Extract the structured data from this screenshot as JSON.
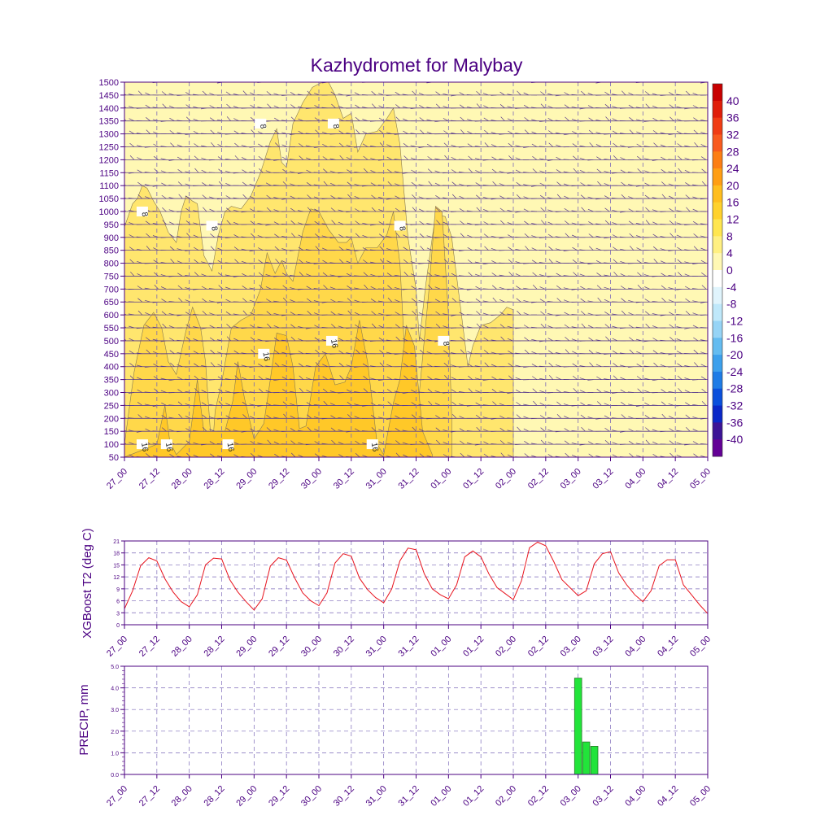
{
  "title": "Kazhydromet for Malybay",
  "colors": {
    "axis": "#4b0082",
    "grid": "#7b68b8",
    "t2_line": "#e8141e",
    "precip_bar": "#22e43a",
    "precip_edge": "#2a7a2a"
  },
  "chart_data": [
    {
      "id": "cross_section",
      "type": "heatmap",
      "title": "Kazhydromet for Malybay",
      "ylabel": "",
      "xlabel": "",
      "x_ticks": [
        "27_00",
        "27_12",
        "28_00",
        "28_12",
        "29_00",
        "29_12",
        "30_00",
        "30_12",
        "31_00",
        "31_12",
        "01_00",
        "01_12",
        "02_00",
        "02_12",
        "03_00",
        "03_12",
        "04_00",
        "04_12",
        "05_00"
      ],
      "y_ticks": [
        50,
        100,
        150,
        200,
        250,
        300,
        350,
        400,
        450,
        500,
        550,
        600,
        650,
        700,
        750,
        800,
        850,
        900,
        950,
        1000,
        1050,
        1100,
        1150,
        1200,
        1250,
        1300,
        1350,
        1400,
        1450,
        1500
      ],
      "ylim": [
        50,
        1500
      ],
      "xlim": [
        0,
        18
      ],
      "colorbar": {
        "labels": [
          "40",
          "36",
          "32",
          "28",
          "24",
          "20",
          "16",
          "12",
          "8",
          "4",
          "0",
          "-4",
          "-8",
          "-12",
          "-16",
          "-20",
          "-24",
          "-28",
          "-32",
          "-36",
          "-40"
        ],
        "colors": [
          "#c80000",
          "#e01e0a",
          "#f03c14",
          "#f85a1e",
          "#fc7e14",
          "#ff9e14",
          "#ffbe1e",
          "#ffd22d",
          "#ffe650",
          "#fff082",
          "#fff8b4",
          "#ffffff",
          "#e0f4fc",
          "#bfe8fa",
          "#96d4f6",
          "#64bcf0",
          "#3ca0ec",
          "#1e7ce6",
          "#0a50dc",
          "#0a28c8",
          "#3c1496",
          "#640096"
        ]
      },
      "contours": [
        {
          "level": 8,
          "points": [
            [
              0,
              940
            ],
            [
              0.25,
              1030
            ],
            [
              0.4,
              1050
            ],
            [
              0.55,
              1100
            ],
            [
              0.7,
              1090
            ],
            [
              0.9,
              1040
            ],
            [
              1.1,
              1000
            ],
            [
              1.35,
              920
            ],
            [
              1.6,
              880
            ],
            [
              1.75,
              1000
            ],
            [
              1.9,
              1060
            ],
            [
              2.1,
              1040
            ],
            [
              2.25,
              1030
            ],
            [
              2.45,
              830
            ],
            [
              2.7,
              770
            ],
            [
              2.9,
              910
            ],
            [
              3.1,
              1000
            ],
            [
              3.3,
              1020
            ],
            [
              3.6,
              1010
            ],
            [
              3.9,
              1060
            ],
            [
              4.2,
              1150
            ],
            [
              4.5,
              1270
            ],
            [
              4.7,
              1320
            ],
            [
              4.85,
              1190
            ],
            [
              5.0,
              1170
            ],
            [
              5.2,
              1340
            ],
            [
              5.5,
              1420
            ],
            [
              5.8,
              1480
            ],
            [
              6.1,
              1500
            ],
            [
              6.3,
              1500
            ],
            [
              6.5,
              1450
            ],
            [
              6.75,
              1360
            ],
            [
              7.0,
              1380
            ],
            [
              7.2,
              1230
            ],
            [
              7.45,
              1300
            ],
            [
              7.8,
              1310
            ],
            [
              8.1,
              1360
            ],
            [
              8.3,
              1400
            ],
            [
              8.5,
              1260
            ],
            [
              8.75,
              900
            ],
            [
              9.0,
              700
            ],
            [
              9.1,
              500
            ],
            [
              9.3,
              720
            ],
            [
              9.6,
              990
            ],
            [
              9.9,
              980
            ],
            [
              10.1,
              900
            ],
            [
              10.3,
              700
            ],
            [
              10.5,
              500
            ],
            [
              10.6,
              400
            ],
            [
              10.75,
              480
            ],
            [
              11.0,
              560
            ],
            [
              11.3,
              570
            ],
            [
              11.6,
              600
            ],
            [
              11.8,
              630
            ],
            [
              12.0,
              620
            ]
          ]
        },
        {
          "level": 12,
          "points": [
            [
              0,
              100
            ],
            [
              0.3,
              380
            ],
            [
              0.6,
              560
            ],
            [
              0.9,
              610
            ],
            [
              1.15,
              550
            ],
            [
              1.35,
              420
            ],
            [
              1.6,
              370
            ],
            [
              1.9,
              540
            ],
            [
              2.1,
              630
            ],
            [
              2.35,
              550
            ],
            [
              2.5,
              420
            ],
            [
              2.7,
              60
            ],
            [
              2.8,
              230
            ],
            [
              3.0,
              340
            ],
            [
              3.3,
              550
            ],
            [
              3.6,
              580
            ],
            [
              3.9,
              600
            ],
            [
              4.2,
              700
            ],
            [
              4.4,
              840
            ],
            [
              4.65,
              760
            ],
            [
              4.85,
              810
            ],
            [
              5.0,
              760
            ],
            [
              5.2,
              730
            ],
            [
              5.5,
              920
            ],
            [
              5.75,
              1010
            ],
            [
              6.0,
              1000
            ],
            [
              6.3,
              930
            ],
            [
              6.6,
              880
            ],
            [
              6.85,
              880
            ],
            [
              7.0,
              900
            ],
            [
              7.2,
              800
            ],
            [
              7.45,
              860
            ],
            [
              7.8,
              860
            ],
            [
              8.1,
              910
            ],
            [
              8.3,
              1000
            ],
            [
              8.5,
              800
            ],
            [
              8.8,
              100
            ],
            [
              9.1,
              300
            ],
            [
              9.4,
              700
            ],
            [
              9.6,
              1020
            ],
            [
              9.8,
              1000
            ],
            [
              10.0,
              600
            ],
            [
              10.1,
              200
            ]
          ]
        },
        {
          "level": 16,
          "points": [
            [
              0,
              50
            ],
            [
              1.0,
              100
            ],
            [
              1.25,
              250
            ],
            [
              1.4,
              110
            ],
            [
              1.6,
              60
            ],
            [
              2.0,
              110
            ],
            [
              2.25,
              350
            ],
            [
              2.45,
              150
            ],
            [
              3.1,
              150
            ],
            [
              3.35,
              270
            ],
            [
              3.5,
              420
            ],
            [
              3.7,
              280
            ],
            [
              4.0,
              120
            ],
            [
              4.3,
              180
            ],
            [
              4.5,
              350
            ],
            [
              4.7,
              530
            ],
            [
              5.0,
              520
            ],
            [
              5.2,
              400
            ],
            [
              5.4,
              160
            ],
            [
              5.6,
              170
            ],
            [
              5.9,
              400
            ],
            [
              6.2,
              450
            ],
            [
              6.5,
              330
            ],
            [
              6.8,
              340
            ],
            [
              7.0,
              400
            ],
            [
              7.25,
              580
            ],
            [
              7.5,
              420
            ],
            [
              7.8,
              100
            ],
            [
              8.0,
              60
            ],
            [
              8.3,
              260
            ],
            [
              8.5,
              350
            ],
            [
              8.7,
              560
            ],
            [
              8.95,
              480
            ],
            [
              9.2,
              150
            ],
            [
              9.5,
              60
            ]
          ]
        }
      ],
      "contour_labels": [
        {
          "text": "8"
        },
        {
          "text": "8"
        },
        {
          "text": "8"
        },
        {
          "text": "8"
        },
        {
          "text": "8"
        },
        {
          "text": "8"
        },
        {
          "text": "16"
        },
        {
          "text": "16"
        },
        {
          "text": "16"
        },
        {
          "text": "16"
        },
        {
          "text": "16"
        },
        {
          "text": "16"
        }
      ]
    },
    {
      "id": "t2",
      "type": "line",
      "ylabel": "XGBoost T2 (deg C)",
      "x_ticks": [
        "27_00",
        "27_12",
        "28_00",
        "28_12",
        "29_00",
        "29_12",
        "30_00",
        "30_12",
        "31_00",
        "31_12",
        "01_00",
        "01_12",
        "02_00",
        "02_12",
        "03_00",
        "03_12",
        "04_00",
        "04_12",
        "05_00"
      ],
      "y_ticks": [
        0,
        3,
        6,
        9,
        12,
        15,
        18,
        21
      ],
      "ylim": [
        0,
        21
      ],
      "xlim": [
        0,
        48
      ],
      "values": [
        4.0,
        8.5,
        14.8,
        16.8,
        16.0,
        11.5,
        8.2,
        5.8,
        4.5,
        7.5,
        15.0,
        16.7,
        16.5,
        11.3,
        8.2,
        5.8,
        3.7,
        6.5,
        14.7,
        16.8,
        16.2,
        11.8,
        8.0,
        6.0,
        4.8,
        8.0,
        15.5,
        17.8,
        17.2,
        11.7,
        8.8,
        6.8,
        5.5,
        9.0,
        16.0,
        19.2,
        18.8,
        12.8,
        9.0,
        7.5,
        6.5,
        10.0,
        17.0,
        18.5,
        17.0,
        12.7,
        9.3,
        7.8,
        6.3,
        11.0,
        19.3,
        20.7,
        19.8,
        15.8,
        11.3,
        9.3,
        7.3,
        8.5,
        15.3,
        17.8,
        18.3,
        13.0,
        10.0,
        7.5,
        5.8,
        8.5,
        14.8,
        16.3,
        16.3,
        10.0,
        7.5,
        5.0,
        2.8
      ]
    },
    {
      "id": "precip",
      "type": "bar",
      "ylabel": "PRECIP, mm",
      "x_ticks": [
        "27_00",
        "27_12",
        "28_00",
        "28_12",
        "29_00",
        "29_12",
        "30_00",
        "30_12",
        "31_00",
        "31_12",
        "01_00",
        "01_12",
        "02_00",
        "02_12",
        "03_00",
        "03_12",
        "04_00",
        "04_12",
        "05_00"
      ],
      "y_ticks": [
        "0.0",
        "1.0",
        "2.0",
        "3.0",
        "4.0",
        "5.0"
      ],
      "ylim": [
        0,
        5
      ],
      "xlim": [
        0,
        18
      ],
      "bars": [
        {
          "x": 14.0,
          "value": 4.45
        },
        {
          "x": 14.25,
          "value": 1.5
        },
        {
          "x": 14.5,
          "value": 1.3
        }
      ]
    }
  ]
}
